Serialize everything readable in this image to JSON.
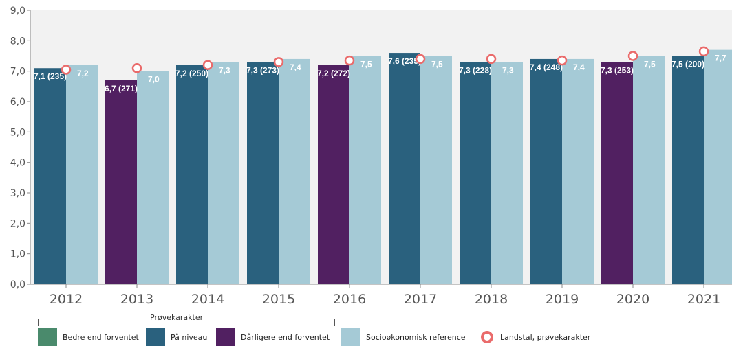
{
  "chart_data": {
    "type": "bar",
    "title": "",
    "xlabel": "",
    "ylabel": "",
    "ylim": [
      0,
      9
    ],
    "y_ticks": [
      "0,0",
      "1,0",
      "2,0",
      "3,0",
      "4,0",
      "5,0",
      "6,0",
      "7,0",
      "8,0",
      "9,0"
    ],
    "grid": false,
    "categories": [
      "2012",
      "2013",
      "2014",
      "2015",
      "2016",
      "2017",
      "2018",
      "2019",
      "2020",
      "2021"
    ],
    "series": [
      {
        "name": "Prøvekarakter",
        "values": [
          7.1,
          6.7,
          7.2,
          7.3,
          7.2,
          7.6,
          7.3,
          7.4,
          7.3,
          7.5
        ],
        "labels": [
          "7,1 (235)",
          "6,7 (271)",
          "7,2 (250)",
          "7,3 (273)",
          "7,2 (272)",
          "7,6 (235)",
          "7,3 (228)",
          "7,4 (248)",
          "7,3 (253)",
          "7,5 (200)"
        ],
        "categories_status": [
          "paa_niveau",
          "daarligere",
          "paa_niveau",
          "paa_niveau",
          "daarligere",
          "paa_niveau",
          "paa_niveau",
          "paa_niveau",
          "daarligere",
          "paa_niveau"
        ]
      },
      {
        "name": "Socioøkonomisk reference",
        "values": [
          7.2,
          7.0,
          7.3,
          7.4,
          7.5,
          7.5,
          7.3,
          7.4,
          7.5,
          7.7
        ],
        "labels": [
          "7,2",
          "7,0",
          "7,3",
          "7,4",
          "7,5",
          "7,5",
          "7,3",
          "7,4",
          "7,5",
          "7,7"
        ]
      },
      {
        "name": "Landstal, prøvekarakter",
        "values": [
          7.05,
          7.1,
          7.2,
          7.3,
          7.35,
          7.4,
          7.4,
          7.35,
          7.5,
          7.65
        ]
      }
    ],
    "colors": {
      "bedre": "#4a8a6c",
      "paa_niveau": "#2a617e",
      "daarligere": "#512061",
      "reference": "#a5cad6",
      "landstal": "#ea6b6b",
      "plot_bg": "#f2f2f2",
      "axis": "#888888",
      "tick_text": "#555555"
    },
    "legend_position": "bottom"
  },
  "legend": {
    "group_title": "Prøvekarakter",
    "items": [
      {
        "key": "bedre",
        "label": "Bedre end forventet"
      },
      {
        "key": "paa_niveau",
        "label": "På niveau"
      },
      {
        "key": "daarligere",
        "label": "Dårligere end forventet"
      },
      {
        "key": "reference",
        "label": "Socioøkonomisk reference"
      },
      {
        "key": "landstal",
        "label": "Landstal, prøvekarakter"
      }
    ]
  }
}
